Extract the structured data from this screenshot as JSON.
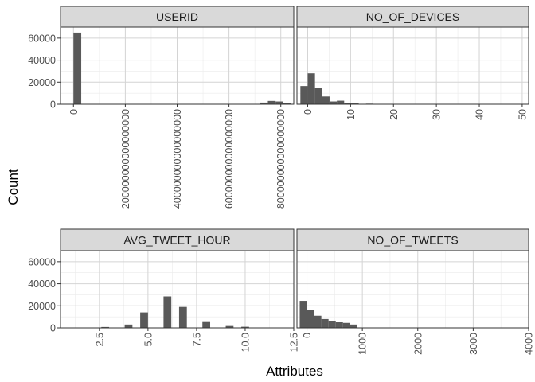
{
  "chart_data": {
    "type": "bar",
    "xlabel": "Attributes",
    "ylabel": "Count",
    "y_ticks": [
      0,
      20000,
      40000,
      60000
    ],
    "ylim": [
      0,
      70000
    ],
    "grid": true,
    "facets": [
      {
        "title": "USERID",
        "xlim": [
          -50000000000000000,
          850000000000000000
        ],
        "x_ticks": [
          0,
          200000000000000000,
          400000000000000000,
          600000000000000000,
          800000000000000000
        ],
        "x_tick_labels": [
          "0",
          "200000000000000000",
          "400000000000000000",
          "600000000000000000",
          "800000000000000000"
        ],
        "bin_width": 30000000000000000,
        "bins": [
          {
            "x": 0,
            "count": 65000
          },
          {
            "x": 30000000000000000,
            "count": 200
          },
          {
            "x": 60000000000000000,
            "count": 100
          },
          {
            "x": 720000000000000000,
            "count": 1500
          },
          {
            "x": 750000000000000000,
            "count": 3000
          },
          {
            "x": 780000000000000000,
            "count": 2500
          },
          {
            "x": 810000000000000000,
            "count": 1200
          }
        ]
      },
      {
        "title": "NO_OF_DEVICES",
        "xlim": [
          -2.5,
          51.5
        ],
        "x_ticks": [
          0,
          10,
          20,
          30,
          40,
          50
        ],
        "x_tick_labels": [
          "0",
          "10",
          "20",
          "30",
          "40",
          "50"
        ],
        "bin_width": 1.7,
        "bins": [
          {
            "x": -1.7,
            "count": 16500
          },
          {
            "x": 0,
            "count": 28000
          },
          {
            "x": 1.7,
            "count": 15000
          },
          {
            "x": 3.4,
            "count": 7000
          },
          {
            "x": 5.1,
            "count": 2500
          },
          {
            "x": 6.8,
            "count": 3200
          },
          {
            "x": 8.5,
            "count": 1200
          },
          {
            "x": 10.2,
            "count": 700
          },
          {
            "x": 11.9,
            "count": 300
          },
          {
            "x": 13.6,
            "count": 500
          },
          {
            "x": 15.3,
            "count": 100
          },
          {
            "x": 17,
            "count": 80
          }
        ]
      },
      {
        "title": "AVG_TWEET_HOUR",
        "xlim": [
          0.5,
          12.5
        ],
        "x_ticks": [
          2.5,
          5.0,
          7.5,
          10.0,
          12.5
        ],
        "x_tick_labels": [
          "2.5",
          "5.0",
          "7.5",
          "10.0",
          "12.5"
        ],
        "bin_width": 0.4,
        "bins": [
          {
            "x": 2.6,
            "count": 800
          },
          {
            "x": 3.8,
            "count": 3000
          },
          {
            "x": 4.6,
            "count": 14000
          },
          {
            "x": 5.8,
            "count": 28500
          },
          {
            "x": 6.6,
            "count": 19000
          },
          {
            "x": 7.8,
            "count": 6000
          },
          {
            "x": 9.0,
            "count": 1700
          },
          {
            "x": 9.8,
            "count": 1000
          },
          {
            "x": 10.6,
            "count": 200
          }
        ]
      },
      {
        "title": "NO_OF_TWEETS",
        "xlim": [
          -180,
          4000
        ],
        "x_ticks": [
          0,
          1000,
          2000,
          3000,
          4000
        ],
        "x_tick_labels": [
          "0",
          "1000",
          "2000",
          "3000",
          "4000"
        ],
        "bin_width": 130,
        "bins": [
          {
            "x": -130,
            "count": 24500
          },
          {
            "x": 0,
            "count": 16500
          },
          {
            "x": 130,
            "count": 11000
          },
          {
            "x": 260,
            "count": 8000
          },
          {
            "x": 390,
            "count": 6500
          },
          {
            "x": 520,
            "count": 5500
          },
          {
            "x": 650,
            "count": 4500
          },
          {
            "x": 780,
            "count": 3000
          },
          {
            "x": 910,
            "count": 150
          },
          {
            "x": 1040,
            "count": 80
          },
          {
            "x": 1170,
            "count": 50
          }
        ]
      }
    ]
  }
}
